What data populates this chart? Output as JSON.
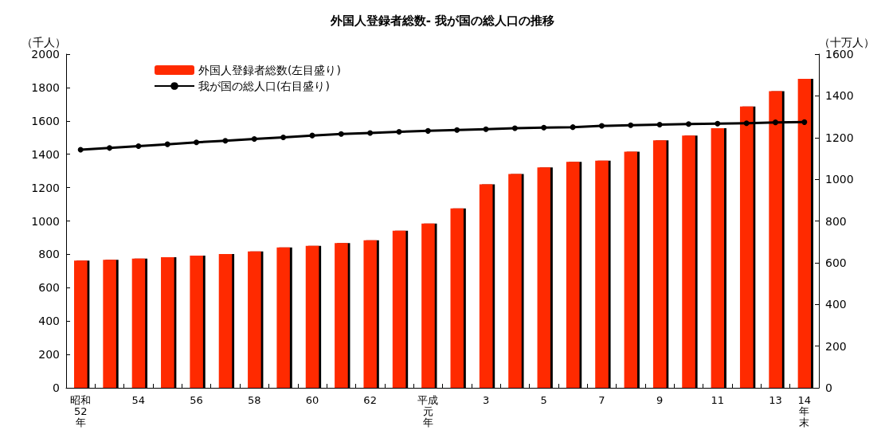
{
  "chart_data": {
    "type": "bar",
    "title": "外国人登録者総数- 我が国の総人口の推移",
    "ylabel": "（千人）",
    "y2label": "（十万人）",
    "categories": [
      "昭和52年",
      null,
      "54",
      null,
      "56",
      null,
      "58",
      null,
      "60",
      null,
      "62",
      null,
      "平成元年",
      null,
      "3",
      null,
      "5",
      null,
      "7",
      null,
      "9",
      null,
      "11",
      null,
      "13",
      "14年末"
    ],
    "series": [
      {
        "name": "外国人登録者総数(左目盛り)",
        "color": "#ff2a00",
        "values": [
          763,
          767,
          775,
          783,
          792,
          802,
          817,
          841,
          851,
          867,
          884,
          941,
          985,
          1075,
          1219,
          1282,
          1321,
          1354,
          1362,
          1415,
          1483,
          1512,
          1556,
          1686,
          1778,
          1852
        ]
      },
      {
        "name": "我が国の総人口(右目盛り)",
        "type": "line",
        "axis": "y2",
        "color": "#000000",
        "values": [
          1142,
          1150,
          1159,
          1168,
          1177,
          1185,
          1193,
          1201,
          1210,
          1217,
          1222,
          1228,
          1232,
          1236,
          1240,
          1245,
          1248,
          1250,
          1256,
          1259,
          1262,
          1265,
          1267,
          1269,
          1273,
          1274
        ]
      }
    ],
    "ylim": [
      0,
      2000
    ],
    "yticks": [
      0,
      200,
      400,
      600,
      800,
      1000,
      1200,
      1400,
      1600,
      1800,
      2000
    ],
    "y2lim": [
      0,
      1600
    ],
    "y2ticks": [
      0,
      200,
      400,
      600,
      800,
      1000,
      1200,
      1400,
      1600
    ],
    "grid": false,
    "legend": "top left",
    "marker": "circle",
    "line_style": "solid"
  }
}
